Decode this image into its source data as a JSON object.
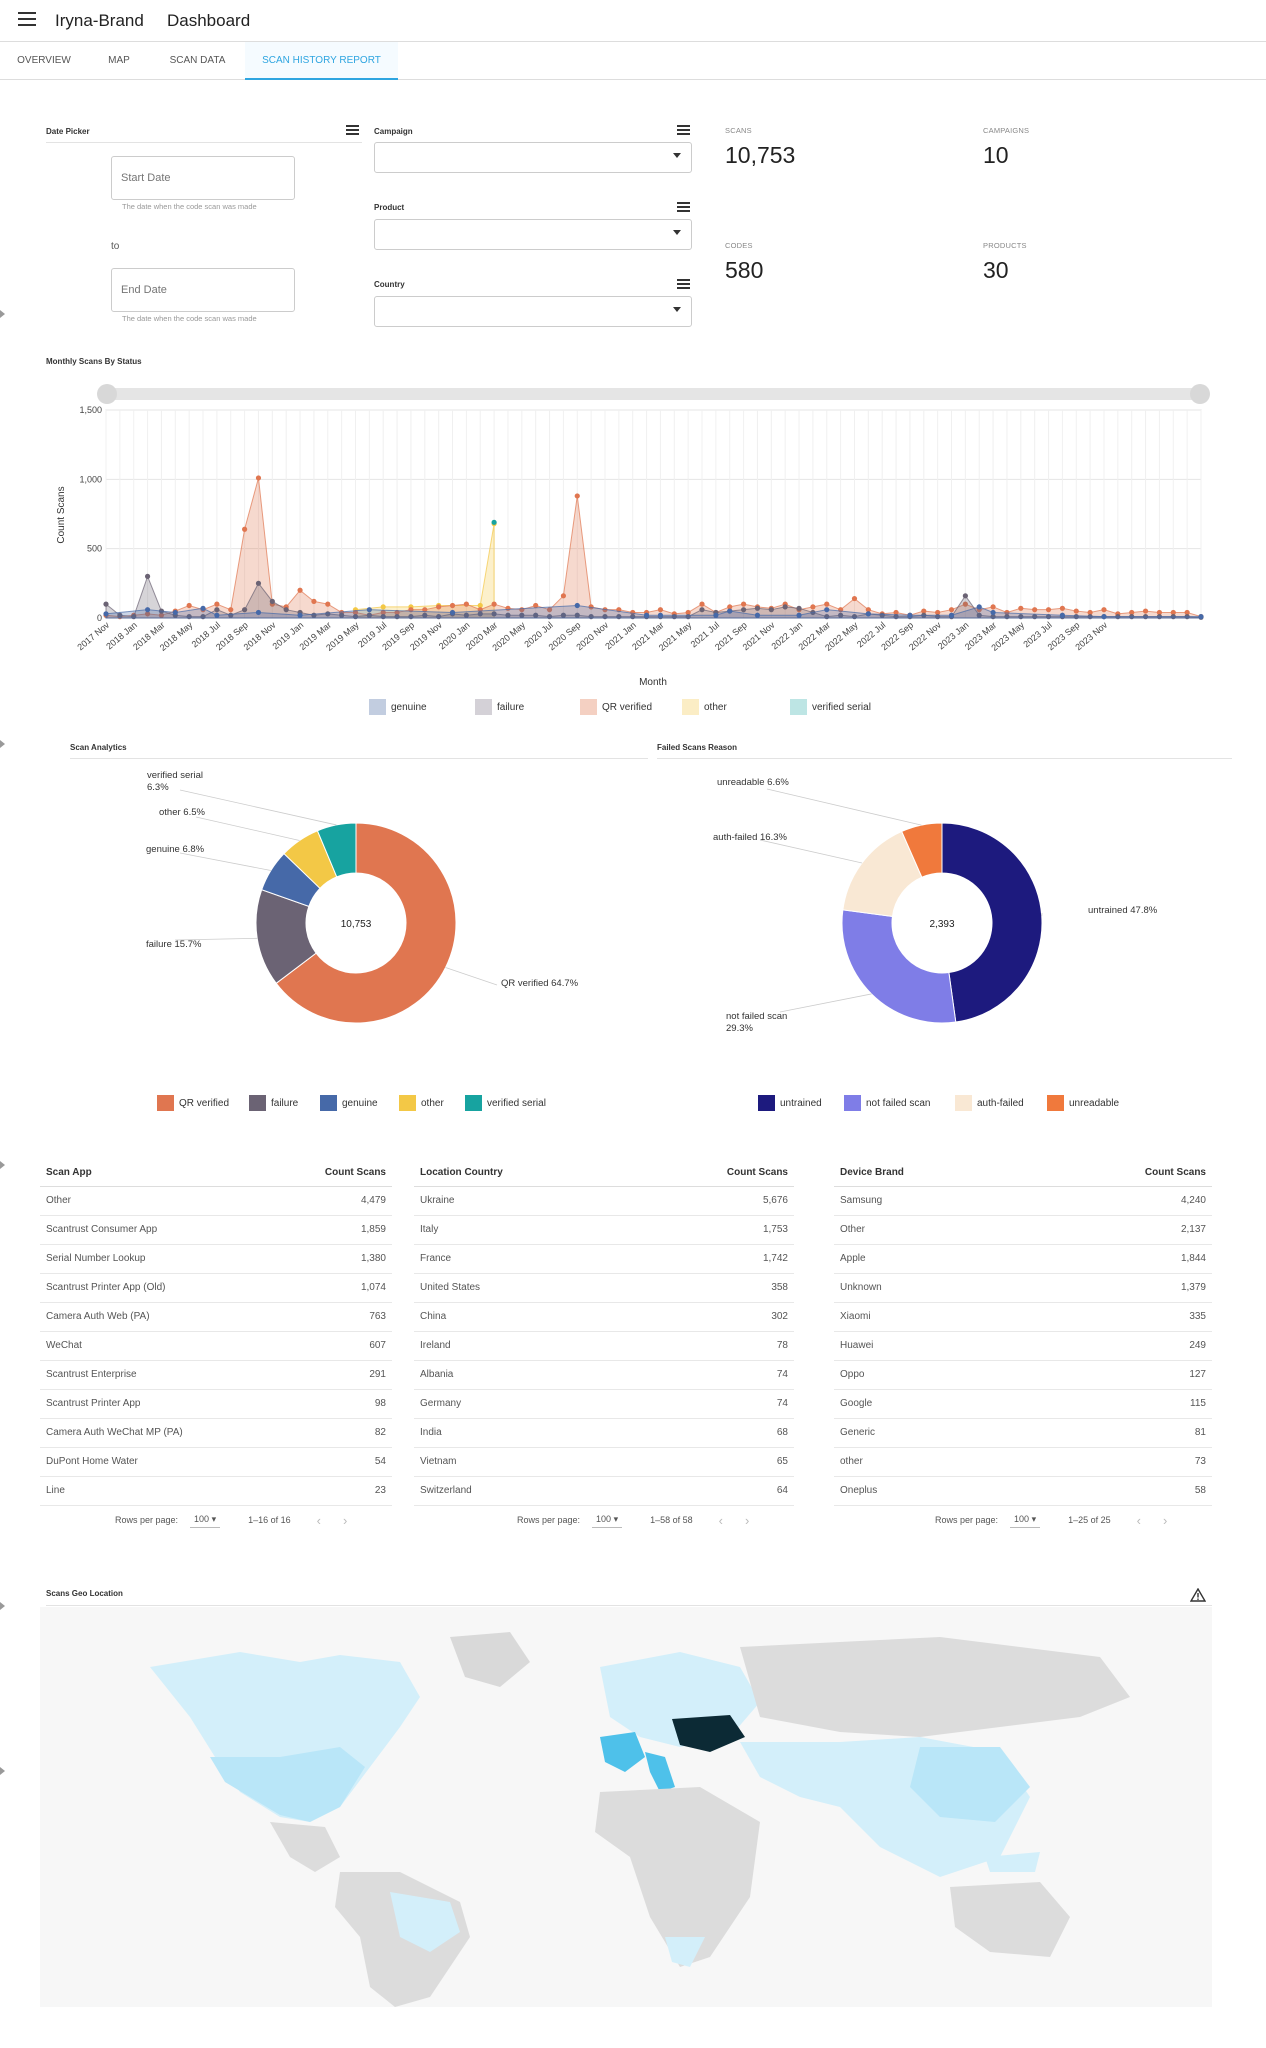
{
  "header": {
    "brand": "Iryna-Brand",
    "title": "Dashboard"
  },
  "tabs": [
    {
      "label": "OVERVIEW"
    },
    {
      "label": "MAP"
    },
    {
      "label": "SCAN DATA"
    },
    {
      "label": "SCAN HISTORY REPORT"
    }
  ],
  "filters": {
    "date_picker_label": "Date Picker",
    "start_placeholder": "Start Date",
    "end_placeholder": "End Date",
    "help": "The date when the code scan was made",
    "to": "to",
    "campaign_label": "Campaign",
    "product_label": "Product",
    "country_label": "Country"
  },
  "kpis": [
    {
      "label": "SCANS",
      "value": "10,753"
    },
    {
      "label": "CAMPAIGNS",
      "value": "10"
    },
    {
      "label": "CODES",
      "value": "580"
    },
    {
      "label": "PRODUCTS",
      "value": "30"
    }
  ],
  "colors": {
    "accent": "#2ea5e0",
    "genuine": "#4669a8",
    "failure": "#6b6374",
    "qr": "#e07650",
    "other": "#f3c846",
    "verified": "#17a3a0",
    "untrained": "#1d1a7e",
    "notfailed": "#7f7de7",
    "authfailed": "#f9e8d4",
    "unreadable": "#f0793c"
  },
  "chart_data": [
    {
      "type": "area",
      "title": "Monthly Scans By Status",
      "xlabel": "Month",
      "ylabel": "Count Scans",
      "ylim": [
        0,
        1500
      ],
      "yticks": [
        "0",
        "500",
        "1,000",
        "1,500"
      ],
      "xticks": [
        "2017 Nov",
        "2018 Jan",
        "2018 Mar",
        "2018 May",
        "2018 Jul",
        "2018 Sep",
        "2018 Nov",
        "2019 Jan",
        "2019 Mar",
        "2019 May",
        "2019 Jul",
        "2019 Sep",
        "2019 Nov",
        "2020 Jan",
        "2020 Mar",
        "2020 May",
        "2020 Jul",
        "2020 Sep",
        "2020 Nov",
        "2021 Jan",
        "2021 Mar",
        "2021 May",
        "2021 Jul",
        "2021 Sep",
        "2021 Nov",
        "2022 Jan",
        "2022 Mar",
        "2022 May",
        "2022 Jul",
        "2022 Sep",
        "2022 Nov",
        "2023 Jan",
        "2023 Mar",
        "2023 May",
        "2023 Jul",
        "2023 Sep",
        "2023 Nov"
      ],
      "series": [
        {
          "name": "genuine",
          "color": "#4669a8",
          "values": [
            [
              0,
              30
            ],
            [
              3,
              60
            ],
            [
              5,
              40
            ],
            [
              7,
              70
            ],
            [
              8,
              20
            ],
            [
              11,
              40
            ],
            [
              14,
              20
            ],
            [
              19,
              60
            ],
            [
              25,
              40
            ],
            [
              34,
              90
            ],
            [
              39,
              20
            ],
            [
              40,
              20
            ],
            [
              44,
              20
            ],
            [
              45,
              50
            ],
            [
              47,
              20
            ],
            [
              50,
              20
            ],
            [
              52,
              60
            ],
            [
              55,
              30
            ],
            [
              58,
              20
            ],
            [
              61,
              20
            ],
            [
              63,
              80
            ],
            [
              64,
              40
            ],
            [
              69,
              20
            ],
            [
              72,
              10
            ],
            [
              79,
              10
            ]
          ]
        },
        {
          "name": "failure",
          "color": "#6b6374",
          "values": [
            [
              0,
              100
            ],
            [
              1,
              20
            ],
            [
              2,
              10
            ],
            [
              3,
              300
            ],
            [
              4,
              50
            ],
            [
              5,
              20
            ],
            [
              6,
              10
            ],
            [
              7,
              10
            ],
            [
              8,
              60
            ],
            [
              9,
              20
            ],
            [
              10,
              60
            ],
            [
              11,
              250
            ],
            [
              12,
              120
            ],
            [
              13,
              60
            ],
            [
              14,
              40
            ],
            [
              15,
              20
            ],
            [
              16,
              30
            ],
            [
              17,
              20
            ],
            [
              18,
              10
            ],
            [
              19,
              20
            ],
            [
              20,
              10
            ],
            [
              21,
              10
            ],
            [
              22,
              10
            ],
            [
              23,
              20
            ],
            [
              24,
              10
            ],
            [
              25,
              30
            ],
            [
              26,
              20
            ],
            [
              27,
              30
            ],
            [
              28,
              30
            ],
            [
              29,
              20
            ],
            [
              30,
              20
            ],
            [
              31,
              20
            ],
            [
              32,
              10
            ],
            [
              33,
              20
            ],
            [
              34,
              20
            ],
            [
              35,
              10
            ],
            [
              36,
              10
            ],
            [
              37,
              10
            ],
            [
              38,
              10
            ],
            [
              39,
              10
            ],
            [
              40,
              10
            ],
            [
              41,
              10
            ],
            [
              42,
              10
            ],
            [
              43,
              60
            ],
            [
              44,
              40
            ],
            [
              45,
              50
            ],
            [
              46,
              60
            ],
            [
              47,
              70
            ],
            [
              48,
              60
            ],
            [
              49,
              80
            ],
            [
              50,
              70
            ],
            [
              51,
              40
            ],
            [
              52,
              10
            ],
            [
              53,
              20
            ],
            [
              54,
              10
            ],
            [
              55,
              30
            ],
            [
              56,
              20
            ],
            [
              57,
              10
            ],
            [
              58,
              10
            ],
            [
              59,
              20
            ],
            [
              60,
              10
            ],
            [
              61,
              10
            ],
            [
              62,
              160
            ],
            [
              63,
              20
            ],
            [
              64,
              10
            ],
            [
              65,
              10
            ],
            [
              66,
              10
            ],
            [
              67,
              10
            ],
            [
              68,
              10
            ],
            [
              69,
              10
            ],
            [
              70,
              10
            ],
            [
              71,
              10
            ],
            [
              72,
              10
            ],
            [
              73,
              10
            ],
            [
              74,
              10
            ],
            [
              75,
              10
            ],
            [
              76,
              10
            ],
            [
              77,
              10
            ],
            [
              78,
              10
            ],
            [
              79,
              5
            ]
          ]
        },
        {
          "name": "QR verified",
          "color": "#e07650",
          "values": [
            [
              0,
              20
            ],
            [
              1,
              10
            ],
            [
              2,
              20
            ],
            [
              3,
              30
            ],
            [
              4,
              20
            ],
            [
              5,
              50
            ],
            [
              6,
              90
            ],
            [
              7,
              60
            ],
            [
              8,
              100
            ],
            [
              9,
              60
            ],
            [
              10,
              640
            ],
            [
              11,
              1010
            ],
            [
              12,
              100
            ],
            [
              13,
              80
            ],
            [
              14,
              200
            ],
            [
              15,
              120
            ],
            [
              16,
              100
            ],
            [
              17,
              40
            ],
            [
              18,
              40
            ],
            [
              19,
              20
            ],
            [
              20,
              40
            ],
            [
              21,
              40
            ],
            [
              22,
              60
            ],
            [
              23,
              60
            ],
            [
              24,
              80
            ],
            [
              25,
              90
            ],
            [
              26,
              100
            ],
            [
              27,
              60
            ],
            [
              28,
              100
            ],
            [
              29,
              70
            ],
            [
              30,
              60
            ],
            [
              31,
              90
            ],
            [
              32,
              60
            ],
            [
              33,
              160
            ],
            [
              34,
              880
            ],
            [
              35,
              80
            ],
            [
              36,
              60
            ],
            [
              37,
              60
            ],
            [
              38,
              40
            ],
            [
              39,
              40
            ],
            [
              40,
              60
            ],
            [
              41,
              30
            ],
            [
              42,
              40
            ],
            [
              43,
              100
            ],
            [
              44,
              40
            ],
            [
              45,
              80
            ],
            [
              46,
              100
            ],
            [
              47,
              80
            ],
            [
              48,
              70
            ],
            [
              49,
              100
            ],
            [
              50,
              60
            ],
            [
              51,
              80
            ],
            [
              52,
              100
            ],
            [
              53,
              60
            ],
            [
              54,
              140
            ],
            [
              55,
              60
            ],
            [
              56,
              30
            ],
            [
              57,
              40
            ],
            [
              58,
              20
            ],
            [
              59,
              50
            ],
            [
              60,
              40
            ],
            [
              61,
              60
            ],
            [
              62,
              100
            ],
            [
              63,
              60
            ],
            [
              64,
              80
            ],
            [
              65,
              40
            ],
            [
              66,
              70
            ],
            [
              67,
              60
            ],
            [
              68,
              60
            ],
            [
              69,
              70
            ],
            [
              70,
              50
            ],
            [
              71,
              40
            ],
            [
              72,
              60
            ],
            [
              73,
              30
            ],
            [
              74,
              40
            ],
            [
              75,
              50
            ],
            [
              76,
              40
            ],
            [
              77,
              40
            ],
            [
              78,
              40
            ],
            [
              79,
              10
            ]
          ]
        },
        {
          "name": "other",
          "color": "#f3c846",
          "values": [
            [
              18,
              60
            ],
            [
              20,
              80
            ],
            [
              22,
              80
            ],
            [
              24,
              90
            ],
            [
              27,
              90
            ],
            [
              28,
              680
            ]
          ]
        },
        {
          "name": "verified serial",
          "color": "#17a3a0",
          "values": [
            [
              28,
              690
            ]
          ]
        }
      ]
    },
    {
      "type": "pie",
      "title": "Scan Analytics",
      "center": "10,753",
      "slices": [
        {
          "name": "QR verified",
          "value": 64.7,
          "label": "QR verified 64.7%"
        },
        {
          "name": "failure",
          "value": 15.7,
          "label": "failure 15.7%"
        },
        {
          "name": "genuine",
          "value": 6.8,
          "label": "genuine 6.8%"
        },
        {
          "name": "other",
          "value": 6.5,
          "label": "other 6.5%"
        },
        {
          "name": "verified serial",
          "value": 6.3,
          "label": "verified serial 6.3%"
        }
      ]
    },
    {
      "type": "pie",
      "title": "Failed Scans Reason",
      "center": "2,393",
      "slices": [
        {
          "name": "untrained",
          "value": 47.8,
          "label": "untrained 47.8%"
        },
        {
          "name": "not failed scan",
          "value": 29.3,
          "label": "not failed scan 29.3%"
        },
        {
          "name": "auth-failed",
          "value": 16.3,
          "label": "auth-failed 16.3%"
        },
        {
          "name": "unreadable",
          "value": 6.6,
          "label": "unreadable 6.6%"
        }
      ]
    }
  ],
  "tables": [
    {
      "col1": "Scan App",
      "col2": "Count Scans",
      "rows": [
        [
          "Other",
          "4,479"
        ],
        [
          "Scantrust Consumer App",
          "1,859"
        ],
        [
          "Serial Number Lookup",
          "1,380"
        ],
        [
          "Scantrust Printer App (Old)",
          "1,074"
        ],
        [
          "Camera Auth Web (PA)",
          "763"
        ],
        [
          "WeChat",
          "607"
        ],
        [
          "Scantrust Enterprise",
          "291"
        ],
        [
          "Scantrust Printer App",
          "98"
        ],
        [
          "Camera Auth WeChat MP (PA)",
          "82"
        ],
        [
          "DuPont Home Water",
          "54"
        ],
        [
          "Line",
          "23"
        ]
      ],
      "rows_label": "Rows per page:",
      "rows_value": "100",
      "range": "1–16 of 16"
    },
    {
      "col1": "Location Country",
      "col2": "Count Scans",
      "rows": [
        [
          "Ukraine",
          "5,676"
        ],
        [
          "Italy",
          "1,753"
        ],
        [
          "France",
          "1,742"
        ],
        [
          "United States",
          "358"
        ],
        [
          "China",
          "302"
        ],
        [
          "Ireland",
          "78"
        ],
        [
          "Albania",
          "74"
        ],
        [
          "Germany",
          "74"
        ],
        [
          "India",
          "68"
        ],
        [
          "Vietnam",
          "65"
        ],
        [
          "Switzerland",
          "64"
        ]
      ],
      "rows_label": "Rows per page:",
      "rows_value": "100",
      "range": "1–58 of 58"
    },
    {
      "col1": "Device Brand",
      "col2": "Count Scans",
      "rows": [
        [
          "Samsung",
          "4,240"
        ],
        [
          "Other",
          "2,137"
        ],
        [
          "Apple",
          "1,844"
        ],
        [
          "Unknown",
          "1,379"
        ],
        [
          "Xiaomi",
          "335"
        ],
        [
          "Huawei",
          "249"
        ],
        [
          "Oppo",
          "127"
        ],
        [
          "Google",
          "115"
        ],
        [
          "Generic",
          "81"
        ],
        [
          "other",
          "73"
        ],
        [
          "Oneplus",
          "58"
        ]
      ],
      "rows_label": "Rows per page:",
      "rows_value": "100",
      "range": "1–25 of 25"
    }
  ],
  "geo": {
    "title": "Scans Geo Location"
  }
}
